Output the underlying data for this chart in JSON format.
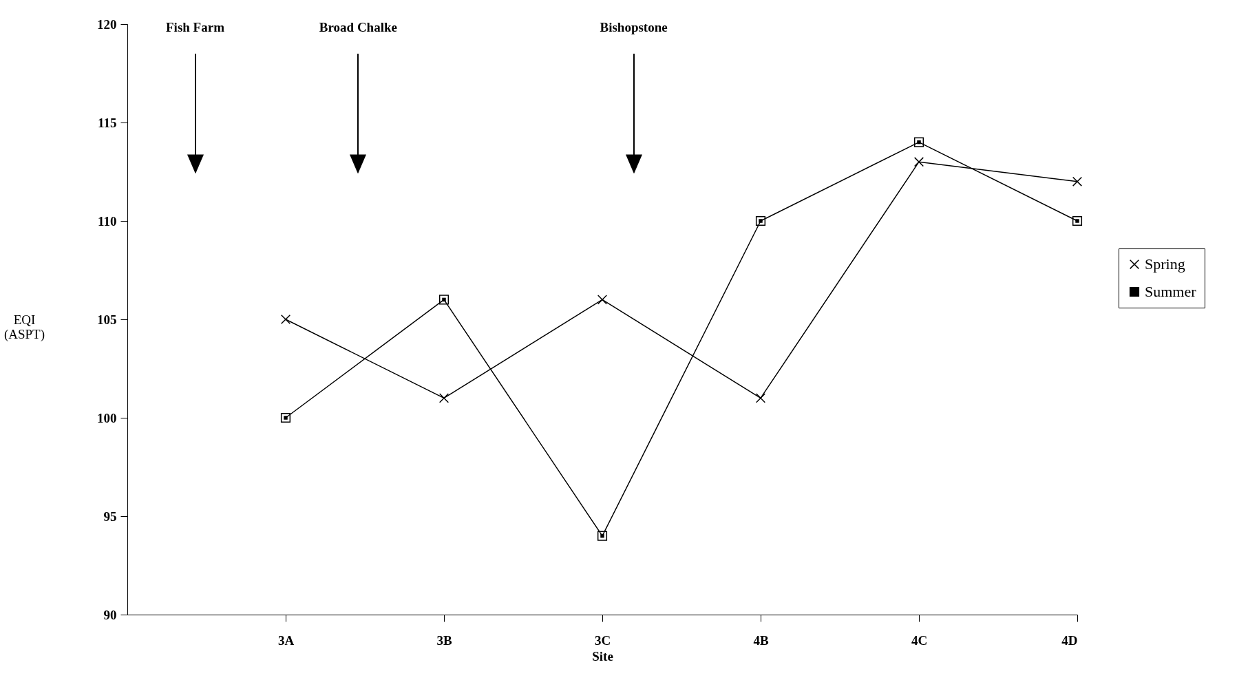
{
  "chart_data": {
    "type": "line",
    "xlabel": "Site",
    "ylabel": "EQI (ASPT)",
    "categories": [
      "3A",
      "3B",
      "3C",
      "4B",
      "4C",
      "4D"
    ],
    "ylim": [
      90,
      120
    ],
    "yticks": [
      90,
      95,
      100,
      105,
      110,
      115,
      120
    ],
    "series": [
      {
        "name": "Spring",
        "color": "#000000",
        "marker": "cross",
        "values": [
          105,
          101,
          106,
          101,
          113,
          112
        ]
      },
      {
        "name": "Summer",
        "color": "#000000",
        "marker": "square",
        "values": [
          100,
          106,
          94,
          110,
          114,
          110
        ]
      }
    ],
    "legend": "right",
    "grid": false,
    "line_style": "solid",
    "annotations": [
      "Fish Farm",
      "Broad Chalke",
      "Bishopstone"
    ]
  }
}
